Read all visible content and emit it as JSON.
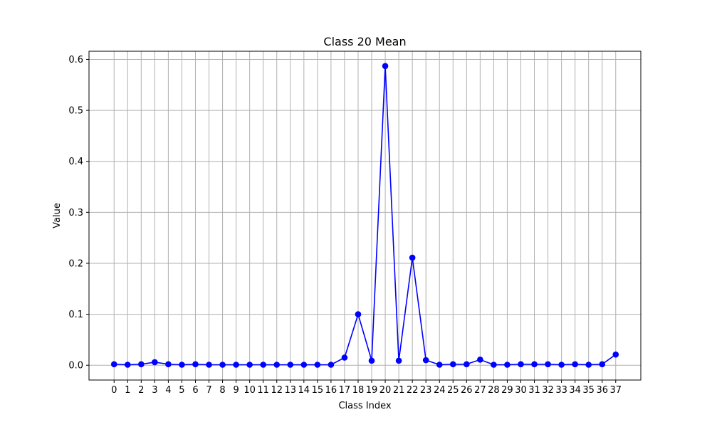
{
  "chart_data": {
    "type": "line",
    "title": "Class 20 Mean",
    "xlabel": "Class Index",
    "ylabel": "Value",
    "x": [
      0,
      1,
      2,
      3,
      4,
      5,
      6,
      7,
      8,
      9,
      10,
      11,
      12,
      13,
      14,
      15,
      16,
      17,
      18,
      19,
      20,
      21,
      22,
      23,
      24,
      25,
      26,
      27,
      28,
      29,
      30,
      31,
      32,
      33,
      34,
      35,
      36,
      37
    ],
    "series": [
      {
        "values": [
          0.002,
          0.001,
          0.002,
          0.006,
          0.002,
          0.001,
          0.002,
          0.001,
          0.001,
          0.001,
          0.001,
          0.001,
          0.001,
          0.001,
          0.001,
          0.001,
          0.001,
          0.015,
          0.1,
          0.009,
          0.587,
          0.009,
          0.211,
          0.01,
          0.001,
          0.002,
          0.002,
          0.011,
          0.001,
          0.001,
          0.002,
          0.002,
          0.002,
          0.001,
          0.002,
          0.001,
          0.002,
          0.021
        ],
        "color": "#0000ff"
      }
    ],
    "xlim": [
      -1.85,
      38.85
    ],
    "ylim": [
      -0.029,
      0.616
    ],
    "yticks": [
      0.0,
      0.1,
      0.2,
      0.3,
      0.4,
      0.5,
      0.6
    ],
    "ytick_labels": [
      "0.0",
      "0.1",
      "0.2",
      "0.3",
      "0.4",
      "0.5",
      "0.6"
    ],
    "grid": true,
    "marker": "circle",
    "grid_color": "#b0b0b0"
  }
}
